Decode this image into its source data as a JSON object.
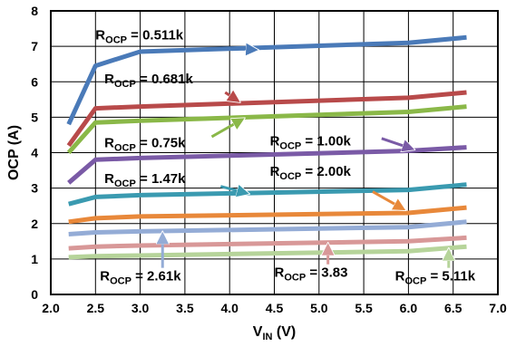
{
  "chart_data": {
    "type": "line",
    "xlabel": {
      "main": "V",
      "sub": "IN",
      "unit": " (V)"
    },
    "ylabel": "OCP (A)",
    "xlim": [
      2.0,
      7.0
    ],
    "ylim": [
      0,
      8
    ],
    "xticks": [
      "2.0",
      "2.5",
      "3.0",
      "3.5",
      "4.0",
      "4.5",
      "5.0",
      "5.5",
      "6.0",
      "6.5",
      "7.0"
    ],
    "yticks": [
      "0",
      "1",
      "2",
      "3",
      "4",
      "5",
      "6",
      "7",
      "8"
    ],
    "grid": true,
    "legend": "none (inline annotations)",
    "series": [
      {
        "name": "R_OCP = 0.511k",
        "color": "#4a7ab8",
        "x": [
          2.2,
          2.5,
          3.0,
          6.0,
          6.65
        ],
        "y": [
          4.8,
          6.45,
          6.85,
          7.1,
          7.25
        ]
      },
      {
        "name": "R_OCP = 0.681k",
        "color": "#b84a4a",
        "x": [
          2.2,
          2.5,
          3.0,
          6.0,
          6.65
        ],
        "y": [
          4.2,
          5.25,
          5.3,
          5.55,
          5.7
        ]
      },
      {
        "name": "R_OCP = 0.75k",
        "color": "#8ab848",
        "x": [
          2.2,
          2.5,
          3.0,
          6.0,
          6.65
        ],
        "y": [
          4.0,
          4.85,
          4.9,
          5.15,
          5.3
        ]
      },
      {
        "name": "R_OCP = 1.00k",
        "color": "#7a5aa6",
        "x": [
          2.2,
          2.5,
          3.0,
          6.0,
          6.65
        ],
        "y": [
          3.15,
          3.8,
          3.85,
          4.05,
          4.15
        ]
      },
      {
        "name": "R_OCP = 1.47k",
        "color": "#3a9ab0",
        "x": [
          2.2,
          2.5,
          3.0,
          6.0,
          6.65
        ],
        "y": [
          2.55,
          2.75,
          2.8,
          2.95,
          3.1
        ]
      },
      {
        "name": "R_OCP = 2.00k",
        "color": "#e8883a",
        "x": [
          2.2,
          2.5,
          3.0,
          6.0,
          6.65
        ],
        "y": [
          2.05,
          2.15,
          2.2,
          2.3,
          2.45
        ]
      },
      {
        "name": "R_OCP = 2.61k",
        "color": "#94acd6",
        "x": [
          2.2,
          2.5,
          3.0,
          6.0,
          6.65
        ],
        "y": [
          1.7,
          1.75,
          1.78,
          1.9,
          2.05
        ]
      },
      {
        "name": "R_OCP = 3.83",
        "color": "#d89898",
        "x": [
          2.2,
          2.5,
          3.0,
          6.0,
          6.65
        ],
        "y": [
          1.3,
          1.35,
          1.38,
          1.5,
          1.6
        ]
      },
      {
        "name": "R_OCP = 5.11k",
        "color": "#b6d49a",
        "x": [
          2.2,
          2.5,
          3.0,
          6.0,
          6.65
        ],
        "y": [
          1.05,
          1.08,
          1.1,
          1.22,
          1.35
        ]
      }
    ],
    "annotations": [
      {
        "main": "R",
        "sub": "OCP",
        "value": " = 0.511k",
        "color": "#4a7ab8",
        "label_at": [
          2.5,
          7.2
        ],
        "arrow_from": [
          3.92,
          6.95
        ],
        "arrow_to": [
          4.3,
          6.9
        ]
      },
      {
        "main": "R",
        "sub": "OCP",
        "value": " = 0.681k",
        "color": "#b84a4a",
        "label_at": [
          2.6,
          5.95
        ],
        "arrow_from": [
          3.95,
          5.7
        ],
        "arrow_to": [
          4.1,
          5.45
        ]
      },
      {
        "main": "R",
        "sub": "OCP",
        "value": " = 0.75k",
        "color": "#8ab848",
        "label_at": [
          2.6,
          4.15
        ],
        "arrow_from": [
          3.8,
          4.45
        ],
        "arrow_to": [
          4.15,
          4.95
        ]
      },
      {
        "main": "R",
        "sub": "OCP",
        "value": " = 1.00k",
        "color": "#7a5aa6",
        "label_at": [
          4.45,
          4.2
        ],
        "arrow_from": [
          5.7,
          4.4
        ],
        "arrow_to": [
          6.05,
          4.1
        ]
      },
      {
        "main": "R",
        "sub": "OCP",
        "value": " = 1.47k",
        "color": "#3a9ab0",
        "label_at": [
          2.6,
          3.15
        ],
        "arrow_from": [
          3.9,
          3.05
        ],
        "arrow_to": [
          4.2,
          2.85
        ]
      },
      {
        "main": "R",
        "sub": "OCP",
        "value": " = 2.00k",
        "color": "#e8883a",
        "label_at": [
          4.45,
          3.35
        ],
        "arrow_from": [
          5.6,
          2.9
        ],
        "arrow_to": [
          5.95,
          2.4
        ]
      },
      {
        "main": "R",
        "sub": "OCP",
        "value": " = 2.61k",
        "color": "#94acd6",
        "label_at": [
          2.55,
          0.4
        ],
        "arrow_from": [
          3.25,
          0.75
        ],
        "arrow_to": [
          3.25,
          1.72
        ]
      },
      {
        "main": "R",
        "sub": "OCP",
        "value": " = 3.83",
        "color": "#d89898",
        "label_at": [
          4.5,
          0.5
        ],
        "arrow_from": [
          5.1,
          0.85
        ],
        "arrow_to": [
          5.1,
          1.4
        ]
      },
      {
        "main": "R",
        "sub": "OCP",
        "value": " = 5.11k",
        "color": "#b6d49a",
        "label_at": [
          5.85,
          0.4
        ],
        "arrow_from": [
          6.45,
          0.75
        ],
        "arrow_to": [
          6.45,
          1.25
        ]
      }
    ]
  }
}
